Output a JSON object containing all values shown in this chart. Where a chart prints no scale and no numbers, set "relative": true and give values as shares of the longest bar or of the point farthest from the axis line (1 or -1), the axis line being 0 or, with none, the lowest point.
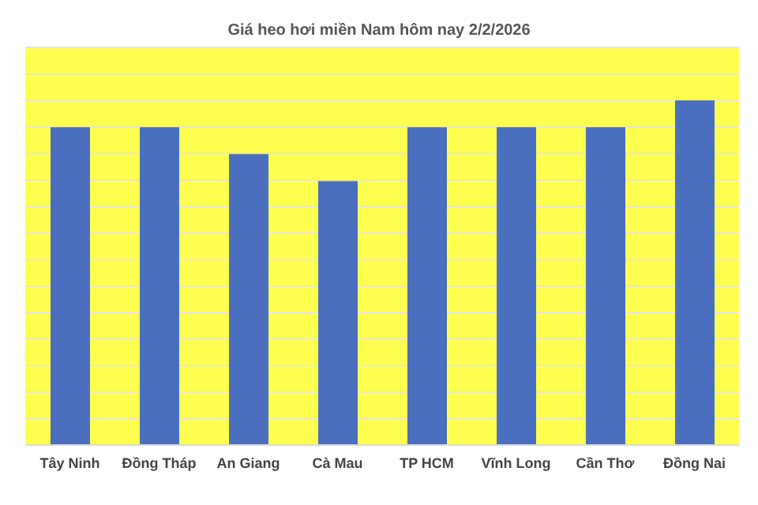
{
  "chart_data": {
    "type": "bar",
    "title": "Giá heo hơi miền Nam hôm nay 2/2/2026",
    "categories": [
      "Tây Ninh",
      "Đồng Tháp",
      "An Giang",
      "Cà Mau",
      "TP HCM",
      "Vĩnh Long",
      "Cần Thơ",
      "Đồng Nai"
    ],
    "series": [
      {
        "color": "#4a6fbe",
        "values": [
          0.922,
          0.922,
          0.844,
          0.766,
          0.922,
          0.922,
          0.922,
          1
        ]
      }
    ],
    "relative": true,
    "grid": "y"
  }
}
